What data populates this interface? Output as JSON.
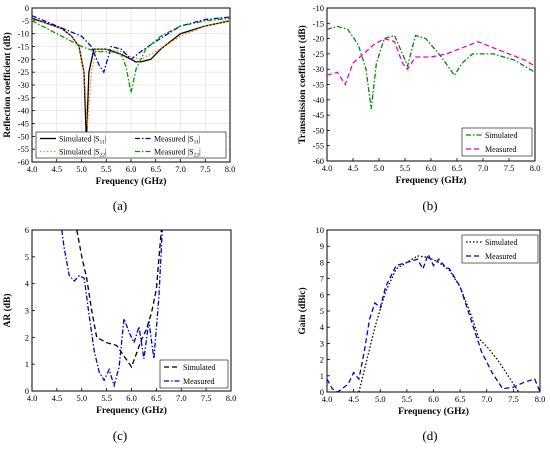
{
  "chart_data": [
    {
      "type": "line",
      "panel_label": "(a)",
      "xlabel": "Frequency (GHz)",
      "ylabel": "Reflection coefficient (dB)",
      "xlim": [
        4.0,
        8.0
      ],
      "ylim": [
        -60,
        0
      ],
      "xticks": [
        "4.0",
        "4.5",
        "5.0",
        "5.5",
        "6.0",
        "6.5",
        "7.0",
        "7.5",
        "8.0"
      ],
      "yticks": [
        "0",
        "-5",
        "-10",
        "-15",
        "-20",
        "-25",
        "-30",
        "-35",
        "-40",
        "-45",
        "-50",
        "-55",
        "-60"
      ],
      "grid": true,
      "legend_position": "bottom",
      "series": [
        {
          "name": "Simulated |S11|",
          "color": "#000000",
          "dash": "solid",
          "x": [
            4.0,
            4.3,
            4.6,
            4.8,
            4.95,
            5.05,
            5.1,
            5.15,
            5.25,
            5.5,
            5.8,
            6.0,
            6.1,
            6.2,
            6.4,
            6.6,
            7.0,
            7.5,
            8.0
          ],
          "y": [
            -4,
            -6,
            -8,
            -11,
            -15,
            -25,
            -52,
            -25,
            -16,
            -16,
            -18,
            -20,
            -21,
            -21,
            -20,
            -16,
            -10,
            -7,
            -5
          ]
        },
        {
          "name": "Simulated |S22|",
          "color": "#ff8c00",
          "dash": "dot",
          "x": [
            4.0,
            4.3,
            4.6,
            4.8,
            4.95,
            5.05,
            5.12,
            5.2,
            5.3,
            5.5,
            5.8,
            6.0,
            6.2,
            6.5,
            7.0,
            7.5,
            8.0
          ],
          "y": [
            -4.5,
            -6,
            -8,
            -11,
            -15,
            -25,
            -46,
            -25,
            -16,
            -16,
            -17,
            -19,
            -20,
            -17,
            -11,
            -7,
            -5
          ]
        },
        {
          "name": "Measured |S11|",
          "color": "#0000dd",
          "dash": "dash-dot",
          "x": [
            4.0,
            4.5,
            5.0,
            5.2,
            5.35,
            5.45,
            5.6,
            5.8,
            6.0,
            6.2,
            6.5,
            7.0,
            7.5,
            8.0
          ],
          "y": [
            -3,
            -7,
            -11,
            -15,
            -22,
            -25,
            -15,
            -16,
            -20,
            -17,
            -13,
            -7,
            -4.5,
            -3.5
          ]
        },
        {
          "name": "Measured |S22|",
          "color": "#009900",
          "dash": "dash-dot",
          "x": [
            4.0,
            4.5,
            5.0,
            5.3,
            5.6,
            5.8,
            5.9,
            6.0,
            6.1,
            6.3,
            6.6,
            7.0,
            7.5,
            8.0
          ],
          "y": [
            -5,
            -10,
            -15,
            -17,
            -17,
            -18,
            -23,
            -33,
            -24,
            -16,
            -11,
            -7,
            -5,
            -4
          ]
        }
      ]
    },
    {
      "type": "line",
      "panel_label": "(b)",
      "xlabel": "Frequency (GHz)",
      "ylabel": "Transmission coefficient (dB)",
      "xlim": [
        4.0,
        8.0
      ],
      "ylim": [
        -60,
        -10
      ],
      "xticks": [
        "4.0",
        "4.5",
        "5.0",
        "5.5",
        "6.0",
        "6.5",
        "7.0",
        "7.5",
        "8.0"
      ],
      "yticks": [
        "-10",
        "-15",
        "-20",
        "-25",
        "-30",
        "-35",
        "-40",
        "-45",
        "-50",
        "-55",
        "-60"
      ],
      "grid": false,
      "legend_position": "bottom-right",
      "series": [
        {
          "name": "Simulated",
          "color": "#008800",
          "dash": "dash-dot",
          "x": [
            4.0,
            4.2,
            4.4,
            4.6,
            4.75,
            4.85,
            4.95,
            5.1,
            5.3,
            5.45,
            5.55,
            5.7,
            5.9,
            6.2,
            6.45,
            6.6,
            6.8,
            7.2,
            7.6,
            8.0
          ],
          "y": [
            -17,
            -16,
            -17,
            -22,
            -30,
            -43,
            -28,
            -20,
            -19,
            -25,
            -29,
            -19,
            -20,
            -26,
            -32,
            -28,
            -25,
            -25,
            -27,
            -31
          ]
        },
        {
          "name": "Measured",
          "color": "#ee00cc",
          "dash": "dash",
          "x": [
            4.0,
            4.2,
            4.35,
            4.5,
            4.7,
            4.9,
            5.1,
            5.3,
            5.45,
            5.55,
            5.7,
            6.0,
            6.3,
            6.6,
            6.9,
            7.2,
            7.5,
            7.8,
            8.0
          ],
          "y": [
            -32,
            -31,
            -35,
            -28,
            -25,
            -22,
            -20,
            -21,
            -28,
            -30,
            -26,
            -26,
            -25,
            -23,
            -21,
            -23,
            -25,
            -27,
            -29
          ]
        }
      ]
    },
    {
      "type": "line",
      "panel_label": "(c)",
      "xlabel": "Frequency (GHz)",
      "ylabel": "AR (dB)",
      "xlim": [
        4.0,
        8.0
      ],
      "ylim": [
        0,
        6
      ],
      "xticks": [
        "4.0",
        "4.5",
        "5.0",
        "5.5",
        "6.0",
        "6.5",
        "7.0",
        "7.5",
        "8.0"
      ],
      "yticks": [
        "0",
        "1",
        "2",
        "3",
        "4",
        "5",
        "6"
      ],
      "grid": false,
      "legend_position": "bottom-right",
      "series": [
        {
          "name": "Simulated",
          "color": "#000000",
          "dash": "dash",
          "x": [
            4.9,
            5.0,
            5.1,
            5.2,
            5.3,
            5.5,
            5.7,
            5.85,
            6.0,
            6.1,
            6.2,
            6.3,
            6.4,
            6.5,
            6.6
          ],
          "y": [
            6,
            5,
            4.2,
            3,
            2,
            1.8,
            1.7,
            1.3,
            0.9,
            1.4,
            1.9,
            2.3,
            2.9,
            3.8,
            6
          ]
        },
        {
          "name": "Measured",
          "color": "#0000cc",
          "dash": "dash-dot",
          "x": [
            4.6,
            4.65,
            4.75,
            4.85,
            4.95,
            5.05,
            5.15,
            5.25,
            5.35,
            5.45,
            5.55,
            5.65,
            5.75,
            5.85,
            5.95,
            6.05,
            6.15,
            6.25,
            6.35,
            6.45,
            6.55,
            6.62
          ],
          "y": [
            6,
            5.3,
            4.3,
            4.1,
            4.3,
            4.2,
            2.8,
            1.5,
            0.7,
            0.4,
            0.8,
            0.2,
            0.9,
            2.7,
            2.2,
            1.8,
            2.4,
            1.2,
            2.6,
            1.2,
            3.5,
            6
          ]
        }
      ]
    },
    {
      "type": "line",
      "panel_label": "(d)",
      "xlabel": "Frequency (GHz)",
      "ylabel": "Gain (dBic)",
      "xlim": [
        4.0,
        8.0
      ],
      "ylim": [
        0,
        10
      ],
      "xticks": [
        "4.0",
        "4.5",
        "5.0",
        "5.5",
        "6.0",
        "6.5",
        "7.0",
        "7.5",
        "8.0"
      ],
      "yticks": [
        "0",
        "1",
        "2",
        "3",
        "4",
        "5",
        "6",
        "7",
        "8",
        "9",
        "10"
      ],
      "grid": false,
      "legend_position": "top-right",
      "series": [
        {
          "name": "Simulated",
          "color": "#000000",
          "dash": "dot",
          "x": [
            4.6,
            4.75,
            4.9,
            5.1,
            5.3,
            5.5,
            5.7,
            5.9,
            6.1,
            6.3,
            6.5,
            6.7,
            6.85,
            7.0,
            7.2,
            7.4,
            7.6
          ],
          "y": [
            0,
            2,
            4,
            6.2,
            7.6,
            8.0,
            8.4,
            8.3,
            8.0,
            7.5,
            6.5,
            4.8,
            3.3,
            2.8,
            2.0,
            1.0,
            0
          ]
        },
        {
          "name": "Measured",
          "color": "#0000cc",
          "dash": "dash",
          "x": [
            4.0,
            4.1,
            4.2,
            4.4,
            4.5,
            4.6,
            4.7,
            4.8,
            4.9,
            5.0,
            5.1,
            5.3,
            5.5,
            5.7,
            5.8,
            5.9,
            6.0,
            6.1,
            6.2,
            6.3,
            6.5,
            6.7,
            6.9,
            7.1,
            7.3,
            7.5,
            7.7,
            7.9,
            8.0
          ],
          "y": [
            0.8,
            0.2,
            0,
            0.5,
            1.2,
            0.8,
            2.5,
            4.5,
            5.5,
            5.2,
            6.5,
            7.8,
            8.0,
            8.2,
            7.6,
            8.5,
            7.8,
            8.2,
            7.8,
            7.6,
            6.5,
            4.5,
            2.5,
            1.2,
            0.2,
            0.3,
            0.6,
            0.8,
            0
          ]
        }
      ]
    }
  ]
}
